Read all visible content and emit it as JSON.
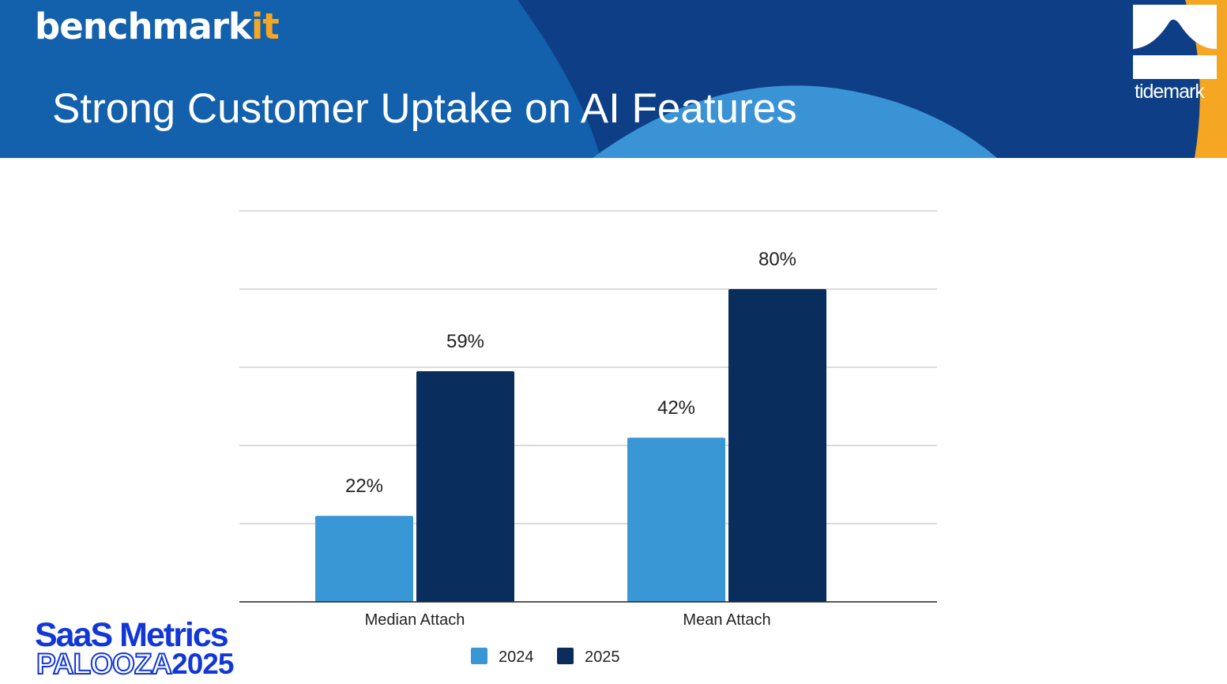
{
  "header": {
    "brand_prefix": "benchmark",
    "brand_suffix": "it",
    "title": "Strong Customer Uptake on AI Features",
    "partner_logo_text": "tidemark"
  },
  "footer": {
    "event_line1": "SaaS Metrics",
    "event_line2_outline": "PALOOZA",
    "event_line2_solid": "2025"
  },
  "colors": {
    "header_dark": "#0e3f86",
    "header_mid": "#1360ac",
    "header_light": "#3a93d4",
    "header_accent": "#f5a623",
    "series_2024": "#3a97d5",
    "series_2025": "#092e5e",
    "gridline": "#cfcfcf",
    "axis": "#222222",
    "event_blue": "#1237d8"
  },
  "chart_data": {
    "type": "bar",
    "title": "",
    "xlabel": "",
    "ylabel": "",
    "categories": [
      "Median Attach",
      "Mean Attach"
    ],
    "series": [
      {
        "name": "2024",
        "values": [
          22,
          42
        ],
        "labels": [
          "22%",
          "42%"
        ],
        "color": "#3a97d5"
      },
      {
        "name": "2025",
        "values": [
          59,
          80
        ],
        "labels": [
          "59%",
          "80%"
        ],
        "color": "#092e5e"
      }
    ],
    "ylim": [
      0,
      100
    ],
    "y_gridlines": [
      20,
      40,
      60,
      80,
      100
    ],
    "grid": true,
    "y_tick_labels_visible": false,
    "legend": "bottom"
  }
}
